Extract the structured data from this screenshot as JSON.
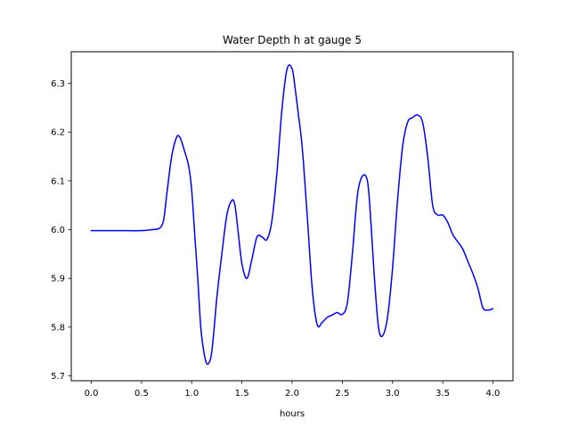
{
  "chart_data": {
    "type": "line",
    "title": "Water Depth h at gauge 5",
    "xlabel": "hours",
    "ylabel": "",
    "xlim": [
      -0.2,
      4.2
    ],
    "ylim": [
      5.69,
      6.365
    ],
    "xticks": [
      0.0,
      0.5,
      1.0,
      1.5,
      2.0,
      2.5,
      3.0,
      3.5,
      4.0
    ],
    "xtick_labels": [
      "0.0",
      "0.5",
      "1.0",
      "1.5",
      "2.0",
      "2.5",
      "3.0",
      "3.5",
      "4.0"
    ],
    "yticks": [
      5.7,
      5.8,
      5.9,
      6.0,
      6.1,
      6.2,
      6.3
    ],
    "ytick_labels": [
      "5.7",
      "5.8",
      "5.9",
      "6.0",
      "6.1",
      "6.2",
      "6.3"
    ],
    "grid": false,
    "legend": "none",
    "series": [
      {
        "color": "#0000ff",
        "x": [
          0.0,
          0.25,
          0.5,
          0.6,
          0.68,
          0.72,
          0.75,
          0.8,
          0.85,
          0.88,
          0.9,
          0.93,
          0.97,
          1.0,
          1.03,
          1.06,
          1.09,
          1.12,
          1.15,
          1.18,
          1.2,
          1.22,
          1.25,
          1.3,
          1.35,
          1.4,
          1.43,
          1.46,
          1.5,
          1.55,
          1.6,
          1.65,
          1.7,
          1.75,
          1.8,
          1.85,
          1.9,
          1.95,
          2.0,
          2.03,
          2.06,
          2.1,
          2.15,
          2.2,
          2.25,
          2.3,
          2.35,
          2.4,
          2.45,
          2.5,
          2.55,
          2.6,
          2.65,
          2.7,
          2.75,
          2.78,
          2.82,
          2.86,
          2.9,
          2.95,
          3.0,
          3.05,
          3.1,
          3.15,
          3.2,
          3.25,
          3.3,
          3.35,
          3.4,
          3.45,
          3.5,
          3.55,
          3.6,
          3.65,
          3.7,
          3.75,
          3.8,
          3.85,
          3.9,
          3.95,
          4.0
        ],
        "y": [
          5.998,
          5.998,
          5.998,
          6.0,
          6.003,
          6.02,
          6.07,
          6.15,
          6.19,
          6.19,
          6.18,
          6.16,
          6.13,
          6.08,
          5.99,
          5.9,
          5.8,
          5.75,
          5.725,
          5.73,
          5.75,
          5.79,
          5.86,
          5.95,
          6.03,
          6.06,
          6.05,
          6.0,
          5.93,
          5.9,
          5.94,
          5.985,
          5.985,
          5.98,
          6.02,
          6.12,
          6.25,
          6.33,
          6.33,
          6.29,
          6.24,
          6.17,
          6.03,
          5.88,
          5.805,
          5.81,
          5.82,
          5.825,
          5.83,
          5.826,
          5.85,
          5.95,
          6.07,
          6.11,
          6.1,
          6.03,
          5.9,
          5.8,
          5.782,
          5.82,
          5.92,
          6.06,
          6.17,
          6.22,
          6.23,
          6.235,
          6.22,
          6.15,
          6.05,
          6.03,
          6.03,
          6.015,
          5.99,
          5.975,
          5.96,
          5.935,
          5.91,
          5.88,
          5.84,
          5.835,
          5.838
        ]
      }
    ]
  }
}
